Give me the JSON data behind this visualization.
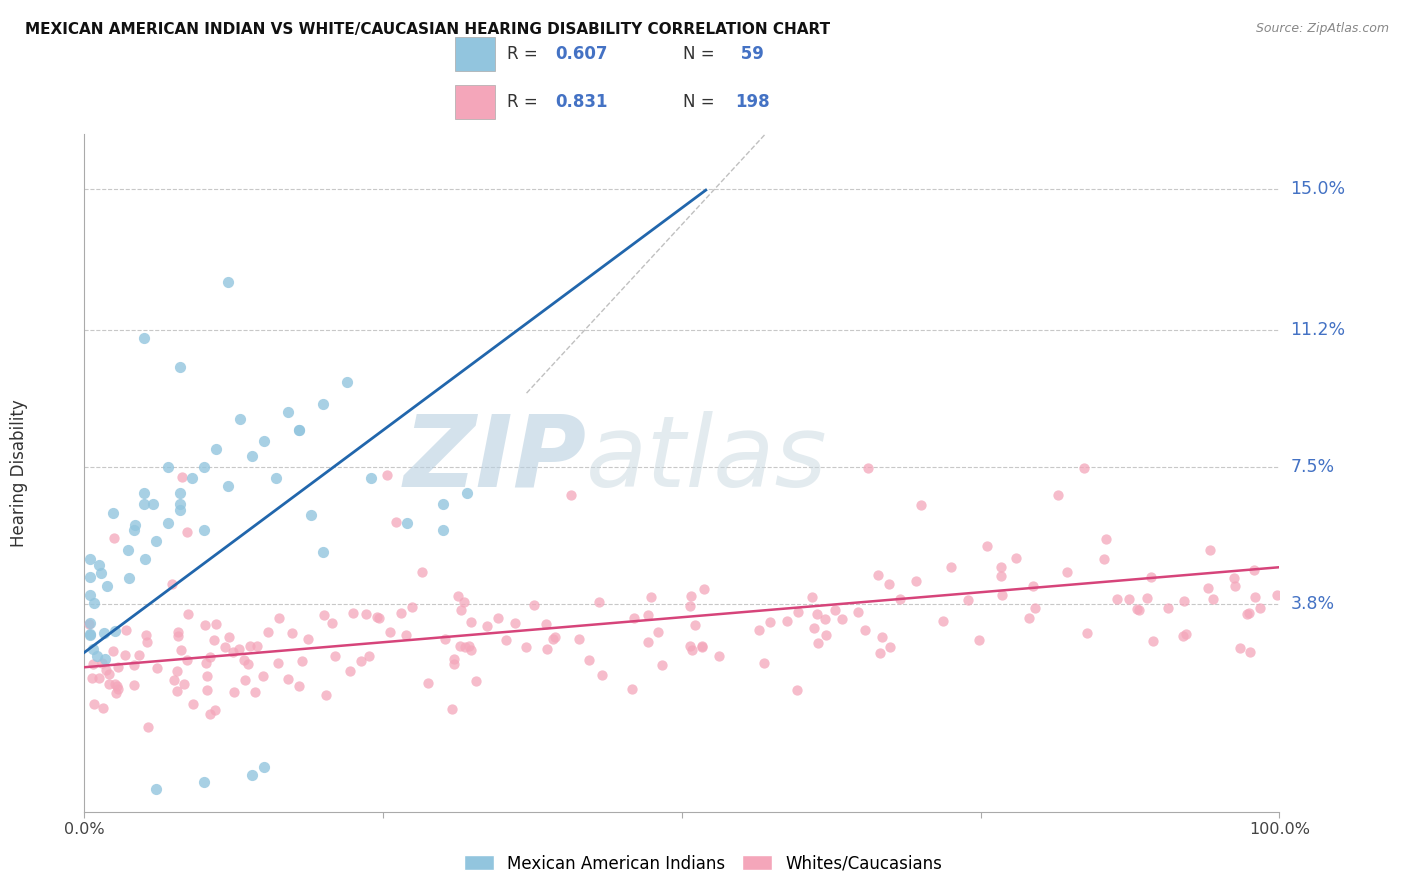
{
  "title": "MEXICAN AMERICAN INDIAN VS WHITE/CAUCASIAN HEARING DISABILITY CORRELATION CHART",
  "source": "Source: ZipAtlas.com",
  "ylabel": "Hearing Disability",
  "xlim": [
    0.0,
    1.0
  ],
  "ylim": [
    -0.018,
    0.165
  ],
  "watermark_zip": "ZIP",
  "watermark_atlas": "atlas",
  "legend_r1": "0.607",
  "legend_n1": "59",
  "legend_r2": "0.831",
  "legend_n2": "198",
  "blue_color": "#92c5de",
  "pink_color": "#f4a6ba",
  "trendline_blue": "#2166ac",
  "trendline_pink": "#d6447a",
  "trendline_diagonal": "#c0c0c0",
  "background": "#ffffff",
  "grid_color": "#c8c8c8",
  "ytick_color": "#4472c4",
  "text_color": "#333333",
  "title_color": "#111111"
}
